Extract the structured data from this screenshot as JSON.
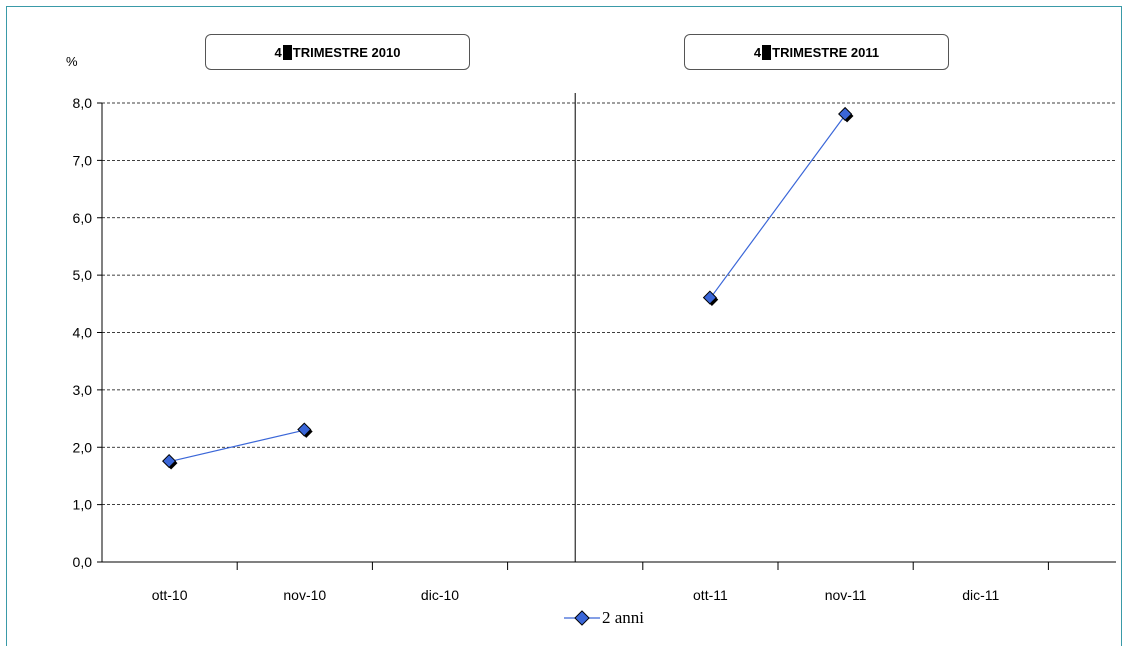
{
  "periods": [
    {
      "label_pre": "4",
      "label_post": "TRIMESTRE  2010"
    },
    {
      "label_pre": "4",
      "label_post": "TRIMESTRE  2011"
    }
  ],
  "unit_label": "%",
  "legend_label": "2 anni",
  "colors": {
    "series": "#3a66d8",
    "marker": "#3a66d8",
    "grid": "#000000",
    "frame": "#3a9aa8"
  },
  "chart_data": {
    "type": "line",
    "categories": [
      "ott-10",
      "nov-10",
      "dic-10",
      "",
      "ott-11",
      "nov-11",
      "dic-11"
    ],
    "series": [
      {
        "name": "2 anni",
        "segments": [
          {
            "x": [
              "ott-10",
              "nov-10"
            ],
            "y": [
              1.75,
              2.3
            ]
          },
          {
            "x": [
              "ott-11",
              "nov-11"
            ],
            "y": [
              4.6,
              7.8
            ]
          }
        ]
      }
    ],
    "yticks": [
      "0,0",
      "1,0",
      "2,0",
      "3,0",
      "4,0",
      "5,0",
      "6,0",
      "7,0",
      "8,0"
    ],
    "ylim": [
      0,
      8
    ],
    "grid": "horizontal dashed",
    "legend": "bottom"
  }
}
